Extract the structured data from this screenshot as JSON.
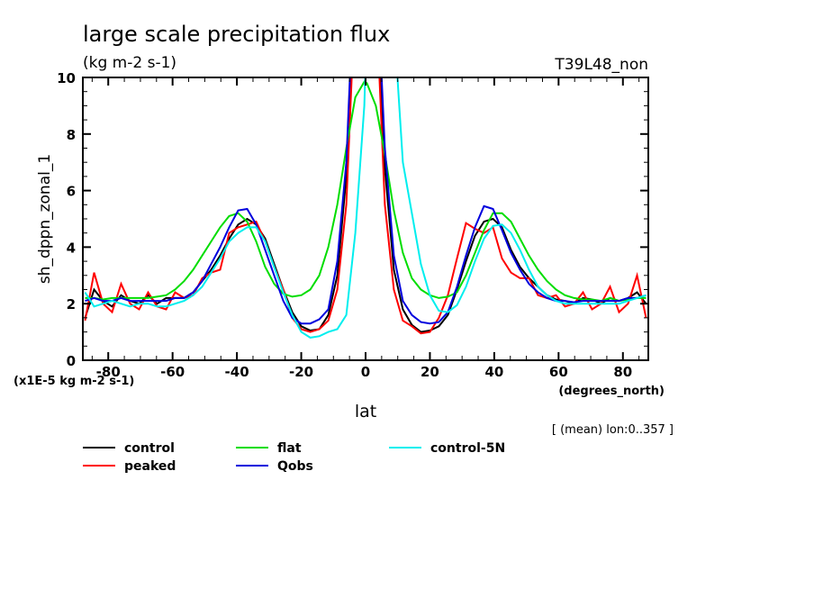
{
  "chart_data": {
    "type": "line",
    "title": "large scale precipitation flux",
    "subtitle": "(kg m-2 s-1)",
    "dataset_label": "T39L48_non",
    "xlabel": "lat",
    "x_units": "(degrees_north)",
    "ylabel": "sh_dppn_zonal_1",
    "y_units": "(x1E-5 kg m-2 s-1)",
    "footnote": "[ (mean) lon:0..357 ]",
    "xlim": [
      -87.9,
      87.9
    ],
    "ylim": [
      0,
      10
    ],
    "x_ticks": [
      -80,
      -60,
      -40,
      -20,
      0,
      20,
      40,
      60,
      80
    ],
    "x_tick_labels": [
      "-80",
      "-60",
      "-40",
      "-20",
      "0",
      "20",
      "40",
      "60",
      "80"
    ],
    "y_ticks": [
      0,
      2,
      4,
      6,
      8,
      10
    ],
    "y_tick_labels": [
      "0",
      "2",
      "4",
      "6",
      "8",
      "10"
    ],
    "grid": false,
    "legend_position": "bottom",
    "x": [
      -87.2,
      -84.4,
      -81.6,
      -78.8,
      -76.0,
      -73.2,
      -70.4,
      -67.6,
      -64.8,
      -62.0,
      -59.2,
      -56.4,
      -53.6,
      -50.8,
      -48.0,
      -45.2,
      -42.4,
      -39.6,
      -36.8,
      -34.0,
      -31.2,
      -28.4,
      -25.6,
      -22.8,
      -20.0,
      -17.2,
      -14.4,
      -11.6,
      -8.8,
      -6.0,
      -3.2,
      -0.4,
      0.4,
      3.2,
      6.0,
      8.8,
      11.6,
      14.4,
      17.2,
      20.0,
      22.8,
      25.6,
      28.4,
      31.2,
      34.0,
      36.8,
      39.6,
      42.4,
      45.2,
      48.0,
      50.8,
      53.6,
      56.4,
      59.2,
      62.0,
      64.8,
      67.6,
      70.4,
      73.2,
      76.0,
      78.8,
      81.6,
      84.4,
      87.2
    ],
    "series": [
      {
        "name": "control",
        "color": "#000000",
        "values": [
          1.5,
          2.5,
          2.1,
          1.9,
          2.3,
          2.1,
          2.0,
          2.3,
          2.0,
          2.2,
          2.2,
          2.2,
          2.4,
          2.8,
          3.2,
          3.7,
          4.3,
          4.8,
          5.0,
          4.8,
          4.3,
          3.4,
          2.5,
          1.7,
          1.2,
          1.05,
          1.1,
          1.6,
          3.0,
          6.5,
          14,
          20,
          20,
          14,
          6.8,
          3.2,
          1.8,
          1.25,
          1.0,
          1.05,
          1.2,
          1.6,
          2.5,
          3.5,
          4.4,
          4.9,
          5.0,
          4.7,
          3.9,
          3.3,
          2.9,
          2.6,
          2.3,
          2.15,
          2.1,
          2.0,
          2.2,
          2.15,
          2.0,
          2.2,
          2.1,
          2.2,
          2.4,
          2.0
        ]
      },
      {
        "name": "peaked",
        "color": "#ff0000",
        "values": [
          1.4,
          3.1,
          2.0,
          1.7,
          2.7,
          2.0,
          1.8,
          2.4,
          1.9,
          1.8,
          2.4,
          2.2,
          2.3,
          2.9,
          3.1,
          3.2,
          4.5,
          4.7,
          4.8,
          4.9,
          4.2,
          3.3,
          2.5,
          1.5,
          1.1,
          1.0,
          1.1,
          1.4,
          2.5,
          5.5,
          13,
          20,
          20,
          13,
          5.5,
          2.5,
          1.4,
          1.2,
          0.95,
          1.0,
          1.5,
          2.3,
          3.6,
          4.85,
          4.65,
          4.5,
          4.7,
          3.6,
          3.1,
          2.9,
          2.9,
          2.3,
          2.2,
          2.3,
          1.9,
          2.0,
          2.4,
          1.8,
          2.0,
          2.6,
          1.7,
          2.0,
          3.0,
          1.5
        ]
      },
      {
        "name": "flat",
        "color": "#00dd00",
        "values": [
          2.2,
          2.2,
          2.15,
          2.2,
          2.2,
          2.2,
          2.2,
          2.2,
          2.25,
          2.3,
          2.5,
          2.8,
          3.2,
          3.7,
          4.2,
          4.7,
          5.1,
          5.2,
          4.9,
          4.2,
          3.3,
          2.7,
          2.35,
          2.25,
          2.3,
          2.5,
          3.0,
          4.0,
          5.5,
          7.5,
          9.3,
          9.85,
          9.8,
          9.0,
          7.3,
          5.3,
          3.8,
          2.9,
          2.5,
          2.3,
          2.2,
          2.25,
          2.4,
          3.0,
          3.8,
          4.6,
          5.2,
          5.2,
          4.9,
          4.3,
          3.7,
          3.2,
          2.8,
          2.5,
          2.3,
          2.2,
          2.15,
          2.15,
          2.1,
          2.2,
          2.1,
          2.15,
          2.2,
          2.2
        ]
      },
      {
        "name": "Qobs",
        "color": "#0000dd",
        "values": [
          2.1,
          2.2,
          2.1,
          2.1,
          2.2,
          2.1,
          2.1,
          2.1,
          2.1,
          2.1,
          2.2,
          2.2,
          2.4,
          2.8,
          3.4,
          4.0,
          4.7,
          5.3,
          5.35,
          4.8,
          3.9,
          3.0,
          2.1,
          1.5,
          1.3,
          1.3,
          1.45,
          1.8,
          3.5,
          7.0,
          14.5,
          20,
          20,
          14.5,
          7.5,
          3.7,
          2.1,
          1.6,
          1.35,
          1.3,
          1.35,
          1.7,
          2.6,
          3.7,
          4.7,
          5.45,
          5.35,
          4.6,
          3.8,
          3.2,
          2.7,
          2.4,
          2.2,
          2.1,
          2.1,
          2.05,
          2.1,
          2.1,
          2.1,
          2.1,
          2.1,
          2.2,
          2.2,
          2.3
        ]
      },
      {
        "name": "control-5N",
        "color": "#00eeee",
        "values": [
          2.4,
          1.9,
          2.0,
          2.1,
          2.0,
          1.9,
          2.0,
          2.0,
          1.9,
          1.9,
          2.0,
          2.1,
          2.3,
          2.6,
          3.1,
          3.6,
          4.2,
          4.5,
          4.7,
          4.7,
          4.2,
          3.3,
          2.4,
          1.6,
          1.0,
          0.8,
          0.85,
          1.0,
          1.1,
          1.6,
          4.5,
          9.0,
          12,
          18,
          20,
          12,
          7.0,
          5.2,
          3.4,
          2.3,
          1.75,
          1.7,
          1.95,
          2.6,
          3.5,
          4.3,
          4.75,
          4.8,
          4.5,
          3.9,
          3.2,
          2.6,
          2.3,
          2.1,
          2.0,
          2.0,
          2.0,
          2.0,
          2.0,
          2.0,
          2.0,
          2.1,
          2.2,
          2.3
        ]
      }
    ]
  },
  "legend": {
    "items": [
      {
        "name": "control",
        "color": "#000000"
      },
      {
        "name": "flat",
        "color": "#00dd00"
      },
      {
        "name": "control-5N",
        "color": "#00eeee"
      },
      {
        "name": "peaked",
        "color": "#ff0000"
      },
      {
        "name": "Qobs",
        "color": "#0000dd"
      }
    ]
  }
}
